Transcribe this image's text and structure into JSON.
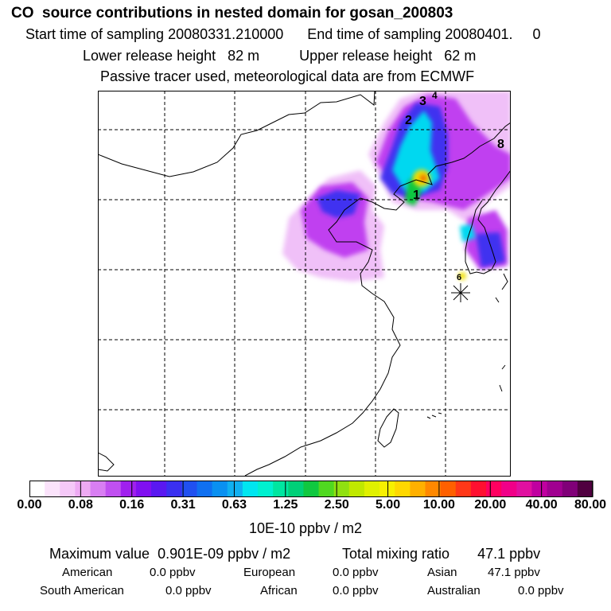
{
  "header": {
    "title": "CO  source contributions in nested domain for gosan_200803",
    "start_label": "Start time of sampling",
    "start_value": "20080331.210000",
    "end_label": "End time of sampling",
    "end_value": "20080401.     0",
    "lower_label": "Lower release height",
    "lower_value": "82 m",
    "upper_label": "Upper release height",
    "upper_value": "62 m",
    "note": "Passive tracer used, meteorological data are from ECMWF"
  },
  "map": {
    "plume_colors": [
      "#f0c0f8",
      "#c040f0",
      "#4030f0",
      "#00d8f0",
      "#10c840",
      "#f0e000",
      "#f06000"
    ],
    "site_marker": "asterisk-icon",
    "source_labels": [
      "1",
      "2",
      "3",
      "4",
      "6",
      "8"
    ]
  },
  "colorbar": {
    "tick_labels": [
      "0.00",
      "0.08",
      "0.16",
      "0.31",
      "0.63",
      "1.25",
      "2.50",
      "5.00",
      "10.00",
      "20.00",
      "40.00",
      "80.00"
    ],
    "colors": [
      "#ffffff",
      "#fbe3fb",
      "#f5c8f8",
      "#eeaaf3",
      "#d87ef2",
      "#c050f0",
      "#a020ee",
      "#8010f0",
      "#5a18f0",
      "#3a30f0",
      "#2050f0",
      "#1070f0",
      "#0a90f0",
      "#10b0f0",
      "#00e6f0",
      "#00f0d0",
      "#00e6a0",
      "#00d078",
      "#10c840",
      "#50d820",
      "#90e010",
      "#c0e800",
      "#e0f000",
      "#f8f000",
      "#ffd800",
      "#ffb000",
      "#ff8800",
      "#ff6000",
      "#ff3818",
      "#ff1030",
      "#ff0060",
      "#f00088",
      "#e010a0",
      "#c000a0",
      "#a00090",
      "#800078",
      "#500040"
    ],
    "units": "10E-10 ppbv / m2"
  },
  "stats": {
    "max_label": "Maximum value",
    "max_value": "0.901E-09 ppbv / m2",
    "total_label": "Total mixing ratio",
    "total_value": "47.1 ppbv",
    "regions": [
      {
        "name": "American",
        "value": "0.0 ppbv"
      },
      {
        "name": "European",
        "value": "0.0 ppbv"
      },
      {
        "name": "Asian",
        "value": "47.1 ppbv"
      },
      {
        "name": "South American",
        "value": "0.0 ppbv"
      },
      {
        "name": "African",
        "value": "0.0 ppbv"
      },
      {
        "name": "Australian",
        "value": "0.0 ppbv"
      }
    ]
  }
}
